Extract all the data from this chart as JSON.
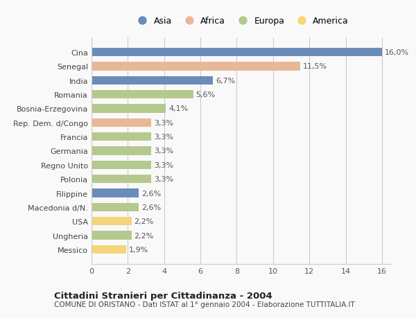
{
  "categories": [
    "Messico",
    "Ungheria",
    "USA",
    "Macedonia d/N.",
    "Filippine",
    "Polonia",
    "Regno Unito",
    "Germania",
    "Francia",
    "Rep. Dem. d/Congo",
    "Bosnia-Erzegovina",
    "Romania",
    "India",
    "Senegal",
    "Cina"
  ],
  "values": [
    1.9,
    2.2,
    2.2,
    2.6,
    2.6,
    3.3,
    3.3,
    3.3,
    3.3,
    3.3,
    4.1,
    5.6,
    6.7,
    11.5,
    16.0
  ],
  "labels": [
    "1,9%",
    "2,2%",
    "2,2%",
    "2,6%",
    "2,6%",
    "3,3%",
    "3,3%",
    "3,3%",
    "3,3%",
    "3,3%",
    "4,1%",
    "5,6%",
    "6,7%",
    "11,5%",
    "16,0%"
  ],
  "continents": [
    "America",
    "Europa",
    "America",
    "Europa",
    "Asia",
    "Europa",
    "Europa",
    "Europa",
    "Europa",
    "Africa",
    "Europa",
    "Europa",
    "Asia",
    "Africa",
    "Asia"
  ],
  "colors": {
    "Asia": "#6b8cba",
    "Africa": "#e8b896",
    "Europa": "#b5c98e",
    "America": "#f5d57a"
  },
  "legend_order": [
    "Asia",
    "Africa",
    "Europa",
    "America"
  ],
  "xlim": [
    0,
    16
  ],
  "xticks": [
    0,
    2,
    4,
    6,
    8,
    10,
    12,
    14,
    16
  ],
  "title": "Cittadini Stranieri per Cittadinanza - 2004",
  "subtitle": "COMUNE DI ORISTANO - Dati ISTAT al 1° gennaio 2004 - Elaborazione TUTTITALIA.IT",
  "bg_color": "#f9f9f9",
  "bar_height": 0.6,
  "grid_color": "#cccccc"
}
